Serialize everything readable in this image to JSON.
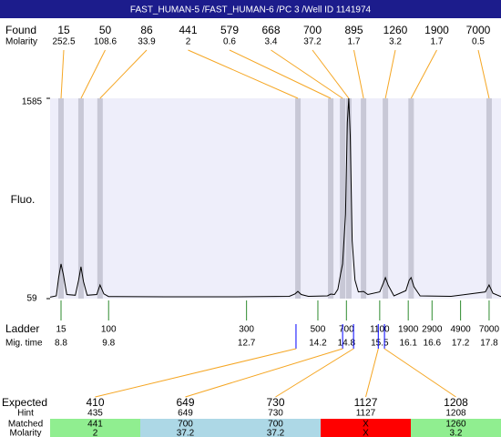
{
  "title": "FAST_HUMAN-5 /FAST_HUMAN-6 /PC 3 /Well ID 1141974",
  "chart_data": {
    "type": "line",
    "y_label": "Fluo.",
    "color": "#000000",
    "x": [
      8.57,
      8.7,
      8.75,
      8.8,
      8.85,
      8.92,
      9.1,
      9.17,
      9.22,
      9.27,
      9.35,
      9.55,
      9.62,
      9.7,
      9.8,
      11,
      12.5,
      13.6,
      13.72,
      13.78,
      13.85,
      14.0,
      14.4,
      14.47,
      14.55,
      14.62,
      14.68,
      14.72,
      14.78,
      14.82,
      14.85,
      14.88,
      14.92,
      14.98,
      15.05,
      15.16,
      15.25,
      15.5,
      15.58,
      15.62,
      15.68,
      15.8,
      16.05,
      16.12,
      16.16,
      16.22,
      16.35,
      17,
      17.72,
      17.8,
      17.88,
      18.05
    ],
    "values": [
      70,
      80,
      220,
      323,
      240,
      90,
      85,
      200,
      302,
      190,
      85,
      90,
      163,
      95,
      75,
      73,
      73,
      76,
      95,
      114,
      90,
      76,
      80,
      94,
      90,
      130,
      250,
      323,
      700,
      1400,
      1585,
      1300,
      500,
      200,
      110,
      114,
      90,
      110,
      180,
      219,
      160,
      80,
      120,
      200,
      219,
      150,
      80,
      76,
      110,
      163,
      100,
      74
    ],
    "xlim": [
      8.57,
      18.05
    ],
    "ylim": [
      59,
      1585
    ],
    "yticks": [
      59,
      1585
    ],
    "found": {
      "label": "Found",
      "molarity_label": "Molarity",
      "sizes": [
        15,
        50,
        86,
        441,
        579,
        668,
        700,
        895,
        1260,
        1900,
        7000
      ],
      "molarity": [
        252.5,
        108.6,
        33.9,
        2,
        0.6,
        3.4,
        37.2,
        1.7,
        3.2,
        1.7,
        0.5
      ],
      "times": [
        8.8,
        9.22,
        9.62,
        13.78,
        14.47,
        14.72,
        14.85,
        15.16,
        15.62,
        16.16,
        17.8
      ]
    },
    "ladder": {
      "label": "Ladder",
      "time_label": "Mig. time",
      "sizes": [
        15,
        100,
        300,
        500,
        700,
        1100,
        1900,
        2900,
        4900,
        7000
      ],
      "times": [
        8.8,
        9.8,
        12.7,
        14.2,
        14.8,
        15.5,
        16.1,
        16.6,
        17.2,
        17.8
      ]
    }
  },
  "expected": {
    "label": "Expected",
    "hint_label": "Hint",
    "matched_label": "Matched",
    "molarity_label": "Molarity",
    "sizes": [
      410,
      649,
      730,
      1127,
      1208
    ],
    "hints": [
      435,
      649,
      730,
      1127,
      1208
    ],
    "matched": [
      441,
      700,
      700,
      "X",
      1260
    ],
    "molarity": [
      2,
      37.2,
      37.2,
      "X",
      3.2
    ],
    "times": [
      13.74,
      14.72,
      14.95,
      15.47,
      15.6
    ],
    "colors": [
      "#90ee90",
      "#add8e6",
      "#add8e6",
      "#ff0000",
      "#90ee90"
    ]
  }
}
